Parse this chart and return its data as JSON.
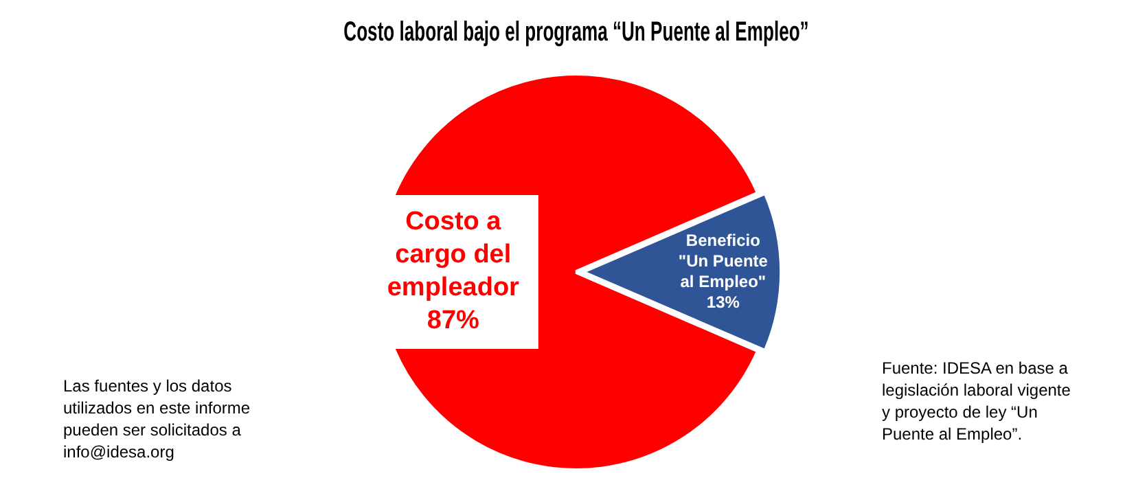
{
  "chart_data": {
    "type": "pie",
    "title": "Costo laboral bajo el programa “Un Puente al Empleo”",
    "categories": [
      "Costo a cargo del empleador",
      "Beneficio \"Un Puente al Empleo\""
    ],
    "values": [
      87,
      13
    ],
    "colors": [
      "#ff0000",
      "#2f5597"
    ],
    "value_labels": [
      "87%",
      "13%"
    ],
    "legend": false,
    "annotations": [
      "Las fuentes y los datos utilizados en este informe pueden ser solicitados a info@idesa.org",
      "Fuente: IDESA en base a legislación laboral vigente y proyecto de ley “Un Puente al Empleo”."
    ]
  }
}
